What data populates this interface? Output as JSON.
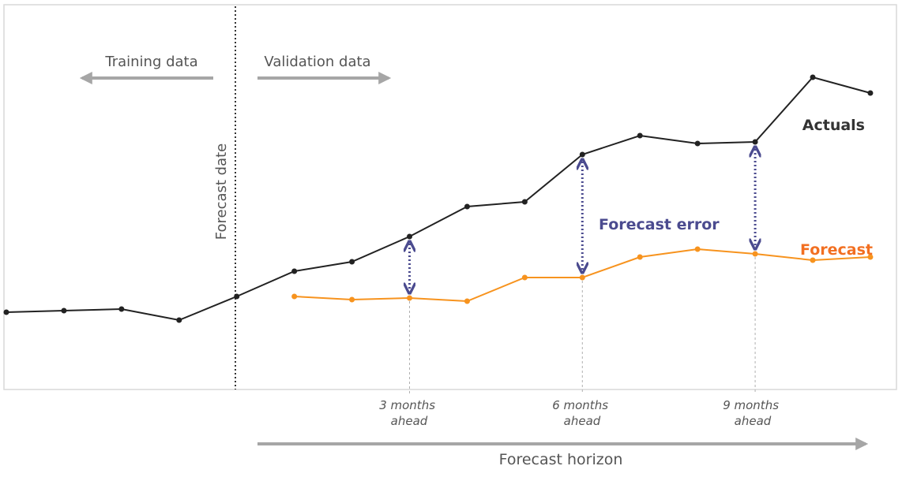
{
  "labels": {
    "training": "Training data",
    "validation": "Validation data",
    "forecast_date": "Forecast date",
    "actuals": "Actuals",
    "forecast": "Forecast",
    "forecast_error": "Forecast error",
    "horizon": "Forecast horizon",
    "ahead_3": [
      "3 months",
      "ahead"
    ],
    "ahead_6": [
      "6 months",
      "ahead"
    ],
    "ahead_9": [
      "9 months",
      "ahead"
    ]
  },
  "colors": {
    "actuals": "#222222",
    "forecast": "#f7931e",
    "forecast_label": "#f26f21",
    "error": "#4b4b8f",
    "arrow": "#a6a6a6",
    "frame": "#d9d9d9",
    "text": "#555555"
  },
  "chart_data": {
    "type": "line",
    "forecast_date_index": 4,
    "series": [
      {
        "name": "Actuals",
        "start_index": 0,
        "values": [
          8,
          9,
          10,
          3,
          18,
          34,
          40,
          56,
          75,
          78,
          108,
          120,
          115,
          116,
          157,
          147
        ]
      },
      {
        "name": "Forecast",
        "start_index": 5,
        "values": [
          18,
          16,
          17,
          15,
          30,
          30,
          43,
          48,
          45,
          41,
          43
        ]
      }
    ],
    "error_indices": [
      7,
      10,
      13
    ],
    "ahead_indices": [
      7,
      10,
      13
    ]
  }
}
